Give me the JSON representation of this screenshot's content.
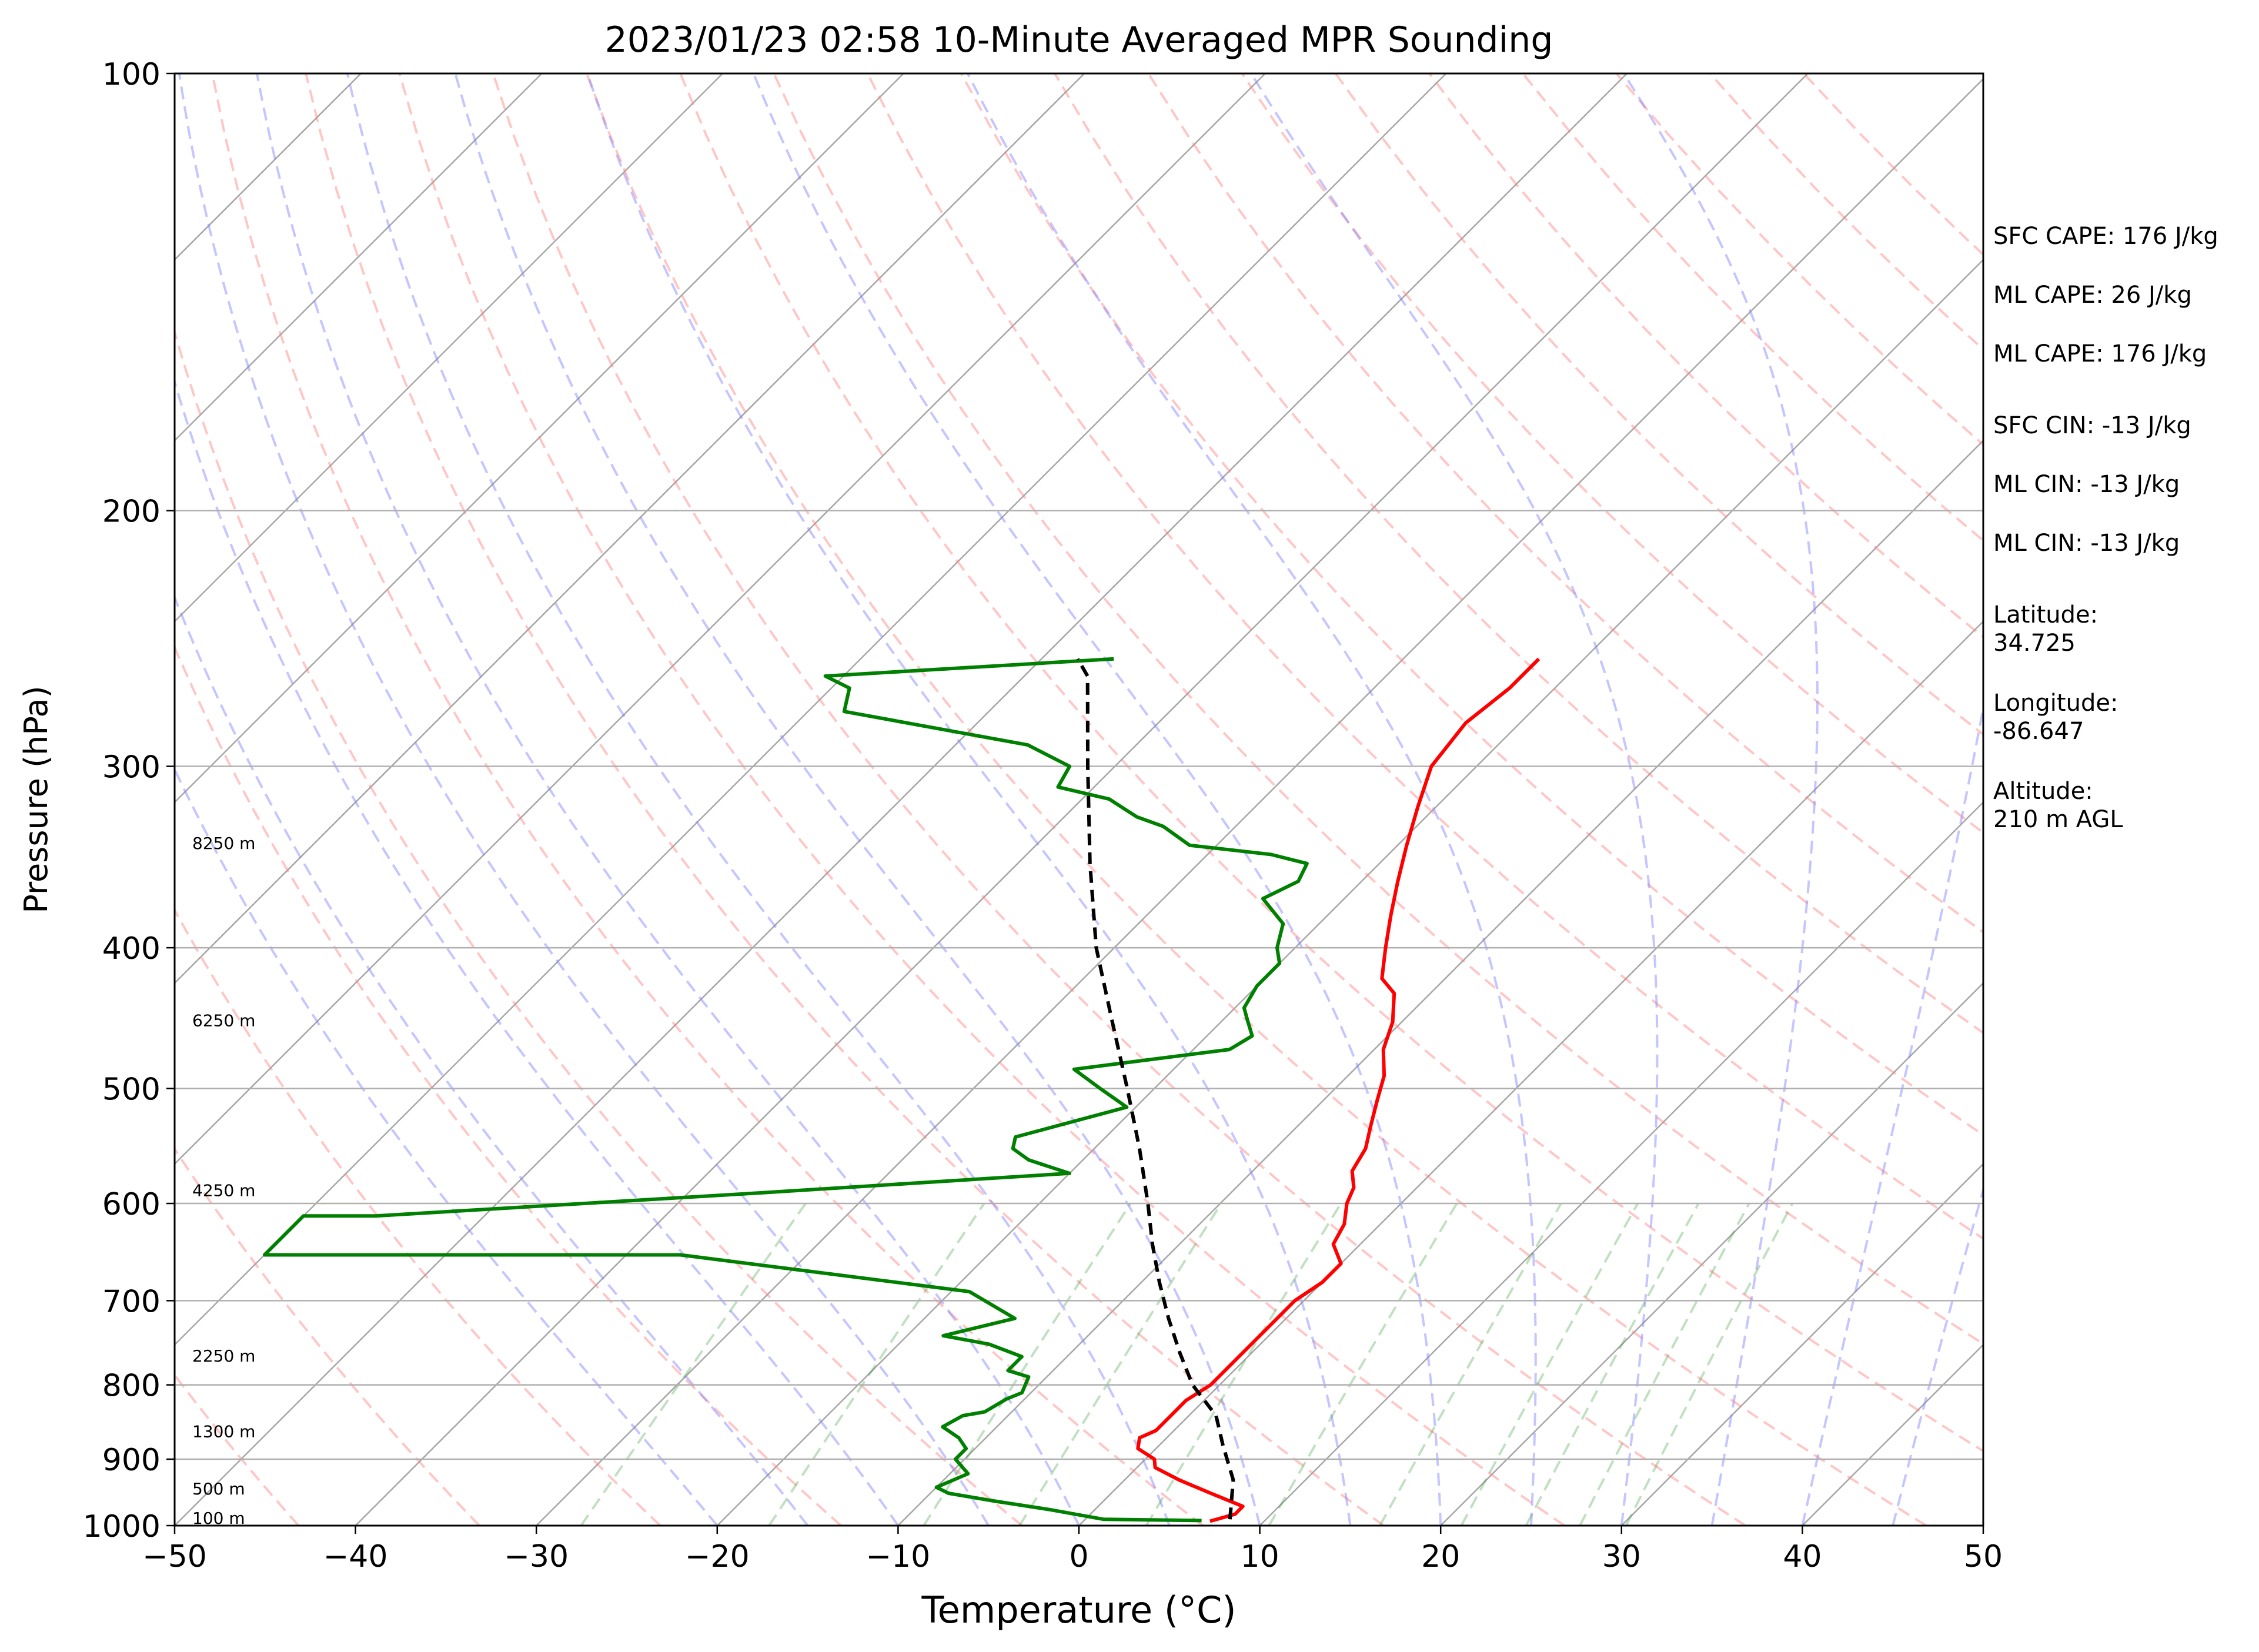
{
  "chart_data": {
    "type": "line",
    "subtype": "skew-T log-P sounding",
    "title": "2023/01/23 02:58 10-Minute Averaged MPR Sounding",
    "xlabel": "Temperature (°C)",
    "ylabel": "Pressure (hPa)",
    "xlim": [
      -50,
      50
    ],
    "ylim": [
      1000,
      100
    ],
    "y_scale": "log",
    "grid": true,
    "x_ticks": [
      -50,
      -40,
      -30,
      -20,
      -10,
      0,
      10,
      20,
      30,
      40,
      50
    ],
    "x_tick_labels": [
      "−50",
      "−40",
      "−30",
      "−20",
      "−10",
      "0",
      "10",
      "20",
      "30",
      "40",
      "50"
    ],
    "y_ticks": [
      1000,
      900,
      800,
      700,
      600,
      500,
      400,
      300,
      200,
      100
    ],
    "y_tick_labels": [
      "1000",
      "900",
      "800",
      "700",
      "600",
      "500",
      "400",
      "300",
      "200",
      "100"
    ],
    "height_labels": [
      {
        "text": "8250 m",
        "p": 342
      },
      {
        "text": "6250 m",
        "p": 453
      },
      {
        "text": "4250 m",
        "p": 593
      },
      {
        "text": "2250 m",
        "p": 771
      },
      {
        "text": "1300 m",
        "p": 869
      },
      {
        "text": "500 m",
        "p": 952
      },
      {
        "text": "100 m",
        "p": 997
      }
    ],
    "series": [
      {
        "role": "temperature",
        "color": "#ff0000",
        "points": [
          [
            7.0,
            993
          ],
          [
            8.0,
            982
          ],
          [
            8.0,
            970
          ],
          [
            5.5,
            950
          ],
          [
            3.0,
            930
          ],
          [
            1.0,
            912
          ],
          [
            0.5,
            900
          ],
          [
            -1.0,
            885
          ],
          [
            -1.5,
            870
          ],
          [
            -1.0,
            860
          ],
          [
            -1.0,
            840
          ],
          [
            -1.0,
            820
          ],
          [
            -0.5,
            800
          ],
          [
            -0.5,
            790
          ],
          [
            -0.5,
            760
          ],
          [
            -0.5,
            740
          ],
          [
            -0.5,
            720
          ],
          [
            -0.5,
            700
          ],
          [
            0.0,
            680
          ],
          [
            0.0,
            660
          ],
          [
            -1.5,
            640
          ],
          [
            -2.0,
            620
          ],
          [
            -3.0,
            600
          ],
          [
            -3.5,
            585
          ],
          [
            -4.5,
            570
          ],
          [
            -5.0,
            550
          ],
          [
            -6.0,
            530
          ],
          [
            -7.0,
            510
          ],
          [
            -8.0,
            490
          ],
          [
            -9.5,
            470
          ],
          [
            -10.5,
            450
          ],
          [
            -12.0,
            430
          ],
          [
            -13.5,
            420
          ],
          [
            -15.0,
            400
          ],
          [
            -16.5,
            380
          ],
          [
            -18.0,
            360
          ],
          [
            -19.5,
            340
          ],
          [
            -21.0,
            320
          ],
          [
            -22.5,
            300
          ],
          [
            -23.0,
            280
          ],
          [
            -22.5,
            265
          ],
          [
            -22.5,
            253
          ]
        ]
      },
      {
        "role": "dewpoint",
        "color": "#008000",
        "points": [
          [
            6.5,
            992
          ],
          [
            1.0,
            990
          ],
          [
            -2.5,
            975
          ],
          [
            -6.0,
            962
          ],
          [
            -9.0,
            950
          ],
          [
            -10.0,
            941
          ],
          [
            -9.0,
            921
          ],
          [
            -10.5,
            900
          ],
          [
            -10.5,
            885
          ],
          [
            -11.5,
            870
          ],
          [
            -13.0,
            855
          ],
          [
            -12.5,
            840
          ],
          [
            -11.5,
            835
          ],
          [
            -11.0,
            818
          ],
          [
            -10.5,
            810
          ],
          [
            -11.0,
            790
          ],
          [
            -12.5,
            782
          ],
          [
            -12.5,
            765
          ],
          [
            -15.0,
            750
          ],
          [
            -18.0,
            740
          ],
          [
            -15.0,
            720
          ],
          [
            -19.0,
            690
          ],
          [
            -37.0,
            651
          ],
          [
            -60.0,
            651
          ],
          [
            -60.0,
            612
          ],
          [
            -56.0,
            612
          ],
          [
            -36.0,
            590
          ],
          [
            -20.0,
            572
          ],
          [
            -23.0,
            560
          ],
          [
            -24.5,
            550
          ],
          [
            -25.0,
            540
          ],
          [
            -20.5,
            515
          ],
          [
            -23.0,
            500
          ],
          [
            -25.5,
            485
          ],
          [
            -18.0,
            470
          ],
          [
            -17.5,
            460
          ],
          [
            -18.5,
            450
          ],
          [
            -19.5,
            440
          ],
          [
            -20.0,
            425
          ],
          [
            -20.0,
            410
          ],
          [
            -21.0,
            400
          ],
          [
            -22.0,
            385
          ],
          [
            -24.5,
            370
          ],
          [
            -23.5,
            360
          ],
          [
            -24.0,
            350
          ],
          [
            -26.5,
            345
          ],
          [
            -31.5,
            340
          ],
          [
            -34.0,
            330
          ],
          [
            -36.0,
            325
          ],
          [
            -38.5,
            316
          ],
          [
            -42.0,
            310
          ],
          [
            -42.5,
            300
          ],
          [
            -46.0,
            290
          ],
          [
            -58.0,
            275
          ],
          [
            -59.0,
            265
          ],
          [
            -61.0,
            260
          ],
          [
            -46.0,
            253
          ]
        ]
      },
      {
        "role": "parcel profile",
        "color": "#000000",
        "dash": true,
        "points": [
          [
            8.0,
            990
          ],
          [
            6.0,
            930
          ],
          [
            3.5,
            880
          ],
          [
            1.5,
            840
          ],
          [
            -1.5,
            800
          ],
          [
            -4.0,
            760
          ],
          [
            -6.5,
            720
          ],
          [
            -9.0,
            680
          ],
          [
            -11.5,
            640
          ],
          [
            -14.0,
            600
          ],
          [
            -17.5,
            550
          ],
          [
            -21.5,
            500
          ],
          [
            -26.0,
            450
          ],
          [
            -31.0,
            400
          ],
          [
            -36.0,
            350
          ],
          [
            -41.5,
            300
          ],
          [
            -46.5,
            260
          ],
          [
            -48.0,
            253
          ]
        ]
      }
    ],
    "background_lines": {
      "isotherms_skewed": "thin gray solid lines",
      "dry_adiabats": "dashed light red",
      "moist_adiabats": "dashed light blue",
      "mixing_ratio": "dashed light green"
    }
  },
  "side_info": {
    "sfc_cape": "SFC CAPE: 176 J/kg",
    "ml_cape_1": "ML CAPE: 26 J/kg",
    "ml_cape_2": "ML CAPE: 176 J/kg",
    "sfc_cin": "SFC CIN: -13 J/kg",
    "ml_cin_1": "ML CIN: -13 J/kg",
    "ml_cin_2": "ML CIN: -13 J/kg",
    "latitude": "Latitude:\n34.725",
    "longitude": "Longitude:\n-86.647",
    "altitude": "Altitude:\n210 m AGL"
  }
}
